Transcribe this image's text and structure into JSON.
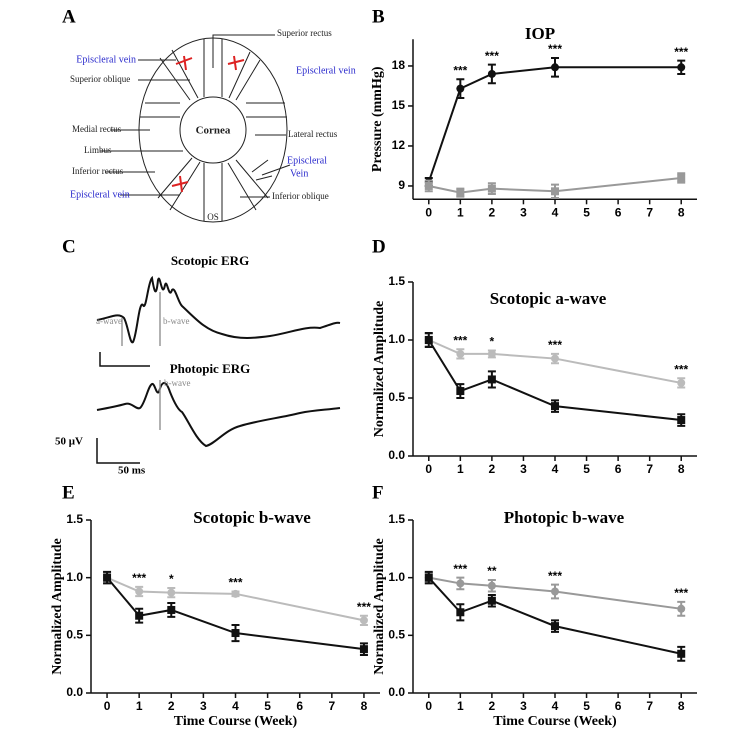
{
  "panel_labels": [
    "A",
    "B",
    "C",
    "D",
    "E",
    "F"
  ],
  "diagram": {
    "labels": [
      {
        "text": "Superior rectus"
      },
      {
        "text": "Episcleral vein"
      },
      {
        "text": "Superior oblique"
      },
      {
        "text": "Episcleral vein"
      },
      {
        "text": "Medial rectus"
      },
      {
        "text": "Cornea"
      },
      {
        "text": "Lateral rectus"
      },
      {
        "text": "Limbus"
      },
      {
        "lines": [
          "Episcleral",
          "Vein"
        ]
      },
      {
        "text": "Inferior rectus"
      },
      {
        "text": "Episcleral vein"
      },
      {
        "text": "Inferior oblique"
      },
      {
        "text": "OS"
      }
    ]
  },
  "erg": {
    "traces": [
      {
        "title": "Scotopic ERG",
        "labels": [
          "a-wave",
          "b-wave"
        ]
      },
      {
        "title": "Photopic ERG",
        "labels": [
          "b-wave"
        ]
      }
    ],
    "scale": [
      "50 μV",
      "50 ms"
    ]
  },
  "chart_data": [
    {
      "type": "line",
      "title": "IOP",
      "y_label": "Pressure (mmHg)",
      "xlim": [
        -0.5,
        8.5
      ],
      "xticks": [
        0,
        1,
        2,
        3,
        4,
        5,
        6,
        7,
        8
      ],
      "ylim": [
        8,
        20
      ],
      "yticks": [
        9,
        12,
        15,
        18
      ],
      "grid": false,
      "series": [
        {
          "color": "#111111",
          "marker": "circle",
          "x": [
            0,
            1,
            2,
            4,
            8
          ],
          "values": [
            9.3,
            16.3,
            17.4,
            17.9,
            17.9
          ],
          "errors": [
            0.3,
            0.7,
            0.7,
            0.7,
            0.5
          ]
        },
        {
          "color": "#999999",
          "marker": "square",
          "x": [
            0,
            1,
            2,
            4,
            8
          ],
          "values": [
            9.0,
            8.5,
            8.8,
            8.6,
            9.6
          ],
          "errors": [
            0.4,
            0.3,
            0.4,
            0.5,
            0.35
          ]
        }
      ],
      "annotations": [
        {
          "x": 1,
          "text": "***"
        },
        {
          "x": 2,
          "text": "***"
        },
        {
          "x": 4,
          "text": "***"
        },
        {
          "x": 8,
          "text": "***"
        }
      ]
    },
    {
      "type": "line",
      "title": "Scotopic a-wave",
      "y_label": "Normalized Amplitude",
      "xlim": [
        -0.5,
        8.5
      ],
      "xticks": [
        0,
        1,
        2,
        3,
        4,
        5,
        6,
        7,
        8
      ],
      "ylim": [
        0,
        1.5
      ],
      "yticks": [
        {
          "value": 0,
          "label": "0.0"
        },
        0.5,
        {
          "value": 1,
          "label": "1.0"
        },
        1.5
      ],
      "grid": false,
      "series": [
        {
          "color": "#bbbbbb",
          "marker": "circle",
          "x": [
            0,
            1,
            2,
            4,
            8
          ],
          "values": [
            1.0,
            0.88,
            0.88,
            0.84,
            0.63
          ],
          "errors": [
            0.05,
            0.04,
            0.03,
            0.04,
            0.04
          ]
        },
        {
          "color": "#111111",
          "marker": "square",
          "x": [
            0,
            1,
            2,
            4,
            8
          ],
          "values": [
            1.0,
            0.56,
            0.66,
            0.43,
            0.31
          ],
          "errors": [
            0.06,
            0.06,
            0.07,
            0.05,
            0.05
          ]
        }
      ],
      "annotations": [
        {
          "x": 1,
          "text": "***"
        },
        {
          "x": 2,
          "text": "*"
        },
        {
          "x": 4,
          "text": "***"
        },
        {
          "x": 8,
          "text": "***"
        }
      ]
    },
    {
      "type": "line",
      "title": "Scotopic b-wave",
      "y_label": "Normalized Amplitude",
      "x_label": "Time Course (Week)",
      "xlim": [
        -0.5,
        8.5
      ],
      "xticks": [
        0,
        1,
        2,
        3,
        4,
        5,
        6,
        7,
        8
      ],
      "ylim": [
        0,
        1.5
      ],
      "yticks": [
        {
          "value": 0,
          "label": "0.0"
        },
        0.5,
        {
          "value": 1,
          "label": "1.0"
        },
        1.5
      ],
      "grid": false,
      "series": [
        {
          "color": "#bbbbbb",
          "marker": "circle",
          "x": [
            0,
            1,
            2,
            4,
            8
          ],
          "values": [
            1.0,
            0.88,
            0.87,
            0.86,
            0.63
          ],
          "errors": [
            0.04,
            0.04,
            0.04,
            0.02,
            0.04
          ]
        },
        {
          "color": "#111111",
          "marker": "square",
          "x": [
            0,
            1,
            2,
            4,
            8
          ],
          "values": [
            1.0,
            0.67,
            0.72,
            0.52,
            0.38
          ],
          "errors": [
            0.05,
            0.06,
            0.06,
            0.07,
            0.05
          ]
        }
      ],
      "annotations": [
        {
          "x": 1,
          "text": "***"
        },
        {
          "x": 2,
          "text": "*"
        },
        {
          "x": 4,
          "text": "***"
        },
        {
          "x": 8,
          "text": "***"
        }
      ]
    },
    {
      "type": "line",
      "title": "Photopic b-wave",
      "y_label": "Normalized Amplitude",
      "x_label": "Time Course (Week)",
      "xlim": [
        -0.5,
        8.5
      ],
      "xticks": [
        0,
        1,
        2,
        3,
        4,
        5,
        6,
        7,
        8
      ],
      "ylim": [
        0,
        1.5
      ],
      "yticks": [
        {
          "value": 0,
          "label": "0.0"
        },
        0.5,
        {
          "value": 1,
          "label": "1.0"
        },
        1.5
      ],
      "grid": false,
      "series": [
        {
          "color": "#999999",
          "marker": "circle",
          "x": [
            0,
            1,
            2,
            4,
            8
          ],
          "values": [
            1.0,
            0.95,
            0.93,
            0.88,
            0.73
          ],
          "errors": [
            0.04,
            0.05,
            0.05,
            0.06,
            0.06
          ]
        },
        {
          "color": "#111111",
          "marker": "square",
          "x": [
            0,
            1,
            2,
            4,
            8
          ],
          "values": [
            1.0,
            0.7,
            0.8,
            0.58,
            0.34
          ],
          "errors": [
            0.05,
            0.07,
            0.05,
            0.05,
            0.06
          ]
        }
      ],
      "annotations": [
        {
          "x": 1,
          "text": "***"
        },
        {
          "x": 2,
          "text": "**"
        },
        {
          "x": 4,
          "text": "***"
        },
        {
          "x": 8,
          "text": "***"
        }
      ]
    }
  ]
}
